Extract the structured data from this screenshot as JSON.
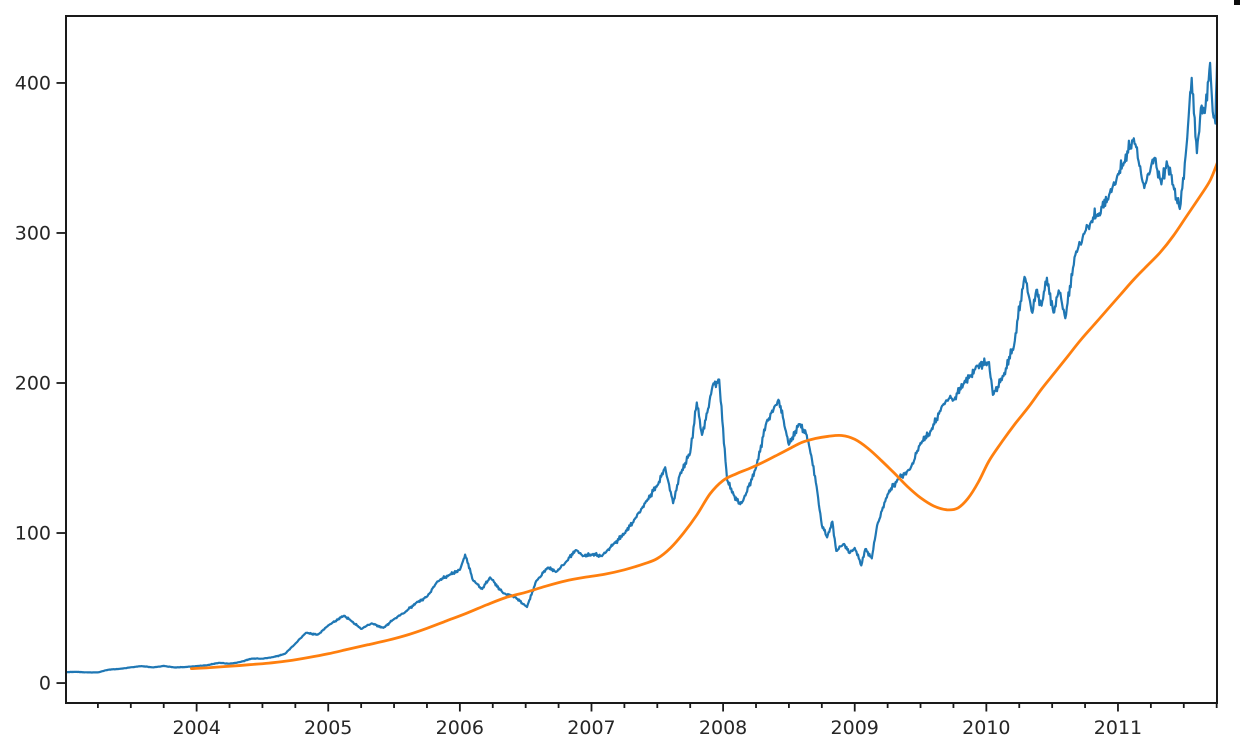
{
  "figure": {
    "background": "#ffffff",
    "axis_color": "#1a1a1a",
    "tick_label_color": "#262626",
    "corner_artifact_color": "#0d0d0d"
  },
  "chart_data": {
    "type": "line",
    "title": "",
    "xlabel": "",
    "ylabel": "",
    "grid": false,
    "legend": "none",
    "frame": "full-box",
    "xlim": [
      2003.0,
      2011.76
    ],
    "ylim": [
      -13.3,
      445.3
    ],
    "x_major_ticks": [
      2004,
      2005,
      2006,
      2007,
      2008,
      2009,
      2010,
      2011
    ],
    "x_tick_labels": [
      "2004",
      "2005",
      "2006",
      "2007",
      "2008",
      "2009",
      "2010",
      "2011"
    ],
    "x_minor_tick_start": 2003.25,
    "x_minor_tick_step": 0.25,
    "x_minor_tick_end": 2011.75,
    "y_major_ticks": [
      0,
      100,
      200,
      300,
      400
    ],
    "y_tick_labels": [
      "0",
      "100",
      "200",
      "300",
      "400"
    ],
    "series": [
      {
        "name": "daily-price-line",
        "color": "#1f77b4",
        "width": 2.2,
        "jitter": 0.022,
        "points": [
          [
            2003.0,
            7.2
          ],
          [
            2003.08,
            7.5
          ],
          [
            2003.17,
            7.1
          ],
          [
            2003.25,
            7.1
          ],
          [
            2003.33,
            8.9
          ],
          [
            2003.42,
            9.5
          ],
          [
            2003.5,
            10.5
          ],
          [
            2003.58,
            11.3
          ],
          [
            2003.67,
            10.4
          ],
          [
            2003.75,
            11.4
          ],
          [
            2003.83,
            10.4
          ],
          [
            2003.92,
            10.7
          ],
          [
            2004.0,
            11.3
          ],
          [
            2004.08,
            11.9
          ],
          [
            2004.17,
            13.5
          ],
          [
            2004.25,
            12.9
          ],
          [
            2004.33,
            14.0
          ],
          [
            2004.42,
            16.3
          ],
          [
            2004.5,
            16.2
          ],
          [
            2004.58,
            17.3
          ],
          [
            2004.67,
            19.4
          ],
          [
            2004.75,
            26.2
          ],
          [
            2004.83,
            33.5
          ],
          [
            2004.92,
            32.2
          ],
          [
            2005.0,
            38.4
          ],
          [
            2005.12,
            44.9
          ],
          [
            2005.17,
            41.7
          ],
          [
            2005.25,
            36.1
          ],
          [
            2005.33,
            39.8
          ],
          [
            2005.42,
            36.8
          ],
          [
            2005.5,
            42.7
          ],
          [
            2005.58,
            46.9
          ],
          [
            2005.67,
            53.6
          ],
          [
            2005.75,
            57.6
          ],
          [
            2005.83,
            67.8
          ],
          [
            2005.92,
            71.9
          ],
          [
            2006.0,
            75.5
          ],
          [
            2006.04,
            85.6
          ],
          [
            2006.1,
            68.5
          ],
          [
            2006.17,
            62.7
          ],
          [
            2006.23,
            70.4
          ],
          [
            2006.33,
            59.8
          ],
          [
            2006.42,
            57.3
          ],
          [
            2006.51,
            50.7
          ],
          [
            2006.58,
            68.0
          ],
          [
            2006.67,
            77.0
          ],
          [
            2006.73,
            74.0
          ],
          [
            2006.81,
            81.1
          ],
          [
            2006.88,
            88.6
          ],
          [
            2006.94,
            84.8
          ],
          [
            2007.0,
            85.7
          ],
          [
            2007.08,
            84.6
          ],
          [
            2007.17,
            92.9
          ],
          [
            2007.25,
            99.8
          ],
          [
            2007.33,
            109.4
          ],
          [
            2007.42,
            121.3
          ],
          [
            2007.5,
            131.8
          ],
          [
            2007.56,
            143.8
          ],
          [
            2007.62,
            119.9
          ],
          [
            2007.67,
            138.5
          ],
          [
            2007.75,
            153.5
          ],
          [
            2007.8,
            187.0
          ],
          [
            2007.84,
            165.4
          ],
          [
            2007.88,
            180.2
          ],
          [
            2007.92,
            198.1
          ],
          [
            2007.97,
            202.3
          ],
          [
            2008.03,
            135.4
          ],
          [
            2008.08,
            125.5
          ],
          [
            2008.13,
            119.2
          ],
          [
            2008.17,
            125.0
          ],
          [
            2008.25,
            143.5
          ],
          [
            2008.33,
            173.9
          ],
          [
            2008.42,
            188.8
          ],
          [
            2008.46,
            175.1
          ],
          [
            2008.5,
            158.9
          ],
          [
            2008.58,
            172.6
          ],
          [
            2008.63,
            166.2
          ],
          [
            2008.67,
            151.7
          ],
          [
            2008.71,
            131.1
          ],
          [
            2008.75,
            105.3
          ],
          [
            2008.79,
            97.1
          ],
          [
            2008.83,
            107.6
          ],
          [
            2008.86,
            88.1
          ],
          [
            2008.92,
            92.7
          ],
          [
            2008.96,
            86.6
          ],
          [
            2009.0,
            90.1
          ],
          [
            2009.05,
            78.4
          ],
          [
            2009.08,
            89.3
          ],
          [
            2009.13,
            83.1
          ],
          [
            2009.17,
            105.1
          ],
          [
            2009.25,
            125.8
          ],
          [
            2009.33,
            135.8
          ],
          [
            2009.42,
            142.4
          ],
          [
            2009.5,
            160.1
          ],
          [
            2009.58,
            168.2
          ],
          [
            2009.67,
            185.3
          ],
          [
            2009.72,
            190.0
          ],
          [
            2009.75,
            188.5
          ],
          [
            2009.83,
            199.9
          ],
          [
            2009.88,
            204.4
          ],
          [
            2009.92,
            210.7
          ],
          [
            2010.02,
            214.0
          ],
          [
            2010.05,
            192.1
          ],
          [
            2010.13,
            204.6
          ],
          [
            2010.21,
            224.8
          ],
          [
            2010.29,
            270.8
          ],
          [
            2010.35,
            246.8
          ],
          [
            2010.38,
            262.1
          ],
          [
            2010.42,
            251.5
          ],
          [
            2010.46,
            270.2
          ],
          [
            2010.51,
            246.9
          ],
          [
            2010.55,
            261.7
          ],
          [
            2010.6,
            243.1
          ],
          [
            2010.67,
            283.8
          ],
          [
            2010.75,
            300.9
          ],
          [
            2010.8,
            308.0
          ],
          [
            2010.84,
            311.2
          ],
          [
            2010.88,
            317.1
          ],
          [
            2010.92,
            322.6
          ],
          [
            2011.0,
            339.3
          ],
          [
            2011.04,
            345.0
          ],
          [
            2011.12,
            363.1
          ],
          [
            2011.2,
            330.0
          ],
          [
            2011.25,
            344.0
          ],
          [
            2011.28,
            350.1
          ],
          [
            2011.33,
            332.4
          ],
          [
            2011.37,
            347.8
          ],
          [
            2011.42,
            332.0
          ],
          [
            2011.47,
            316.0
          ],
          [
            2011.52,
            357.2
          ],
          [
            2011.56,
            403.4
          ],
          [
            2011.6,
            353.2
          ],
          [
            2011.63,
            383.4
          ],
          [
            2011.66,
            379.9
          ],
          [
            2011.7,
            413.4
          ],
          [
            2011.72,
            381.0
          ],
          [
            2011.74,
            373.0
          ],
          [
            2011.755,
            421.0
          ]
        ]
      },
      {
        "name": "moving-average-line",
        "color": "#ff7f0e",
        "width": 2.8,
        "jitter": 0,
        "points": [
          [
            2003.96,
            9.6
          ],
          [
            2004.1,
            10.3
          ],
          [
            2004.25,
            11.2
          ],
          [
            2004.4,
            12.2
          ],
          [
            2004.55,
            13.3
          ],
          [
            2004.7,
            14.8
          ],
          [
            2004.85,
            17.0
          ],
          [
            2005.0,
            19.5
          ],
          [
            2005.15,
            22.5
          ],
          [
            2005.3,
            25.5
          ],
          [
            2005.45,
            28.5
          ],
          [
            2005.6,
            32.0
          ],
          [
            2005.75,
            36.5
          ],
          [
            2005.9,
            41.5
          ],
          [
            2006.05,
            46.5
          ],
          [
            2006.2,
            52.0
          ],
          [
            2006.35,
            57.0
          ],
          [
            2006.5,
            60.5
          ],
          [
            2006.65,
            64.5
          ],
          [
            2006.8,
            68.0
          ],
          [
            2006.95,
            70.5
          ],
          [
            2007.1,
            72.5
          ],
          [
            2007.25,
            75.5
          ],
          [
            2007.4,
            79.5
          ],
          [
            2007.5,
            83.0
          ],
          [
            2007.6,
            90.0
          ],
          [
            2007.7,
            100.0
          ],
          [
            2007.8,
            112.0
          ],
          [
            2007.9,
            126.0
          ],
          [
            2008.0,
            135.0
          ],
          [
            2008.1,
            139.5
          ],
          [
            2008.2,
            143.0
          ],
          [
            2008.3,
            147.0
          ],
          [
            2008.4,
            151.5
          ],
          [
            2008.5,
            156.0
          ],
          [
            2008.6,
            160.5
          ],
          [
            2008.7,
            163.0
          ],
          [
            2008.8,
            164.5
          ],
          [
            2008.9,
            165.0
          ],
          [
            2009.0,
            162.5
          ],
          [
            2009.1,
            156.5
          ],
          [
            2009.2,
            148.5
          ],
          [
            2009.3,
            140.0
          ],
          [
            2009.4,
            131.0
          ],
          [
            2009.5,
            123.5
          ],
          [
            2009.6,
            118.0
          ],
          [
            2009.7,
            115.5
          ],
          [
            2009.78,
            116.5
          ],
          [
            2009.86,
            123.0
          ],
          [
            2009.94,
            134.0
          ],
          [
            2010.02,
            148.0
          ],
          [
            2010.12,
            161.0
          ],
          [
            2010.22,
            173.0
          ],
          [
            2010.32,
            184.0
          ],
          [
            2010.42,
            196.0
          ],
          [
            2010.52,
            207.0
          ],
          [
            2010.62,
            218.0
          ],
          [
            2010.72,
            229.0
          ],
          [
            2010.82,
            239.0
          ],
          [
            2010.92,
            249.0
          ],
          [
            2011.02,
            259.0
          ],
          [
            2011.12,
            269.0
          ],
          [
            2011.22,
            278.0
          ],
          [
            2011.32,
            287.0
          ],
          [
            2011.42,
            298.0
          ],
          [
            2011.52,
            311.0
          ],
          [
            2011.62,
            324.0
          ],
          [
            2011.7,
            335.0
          ],
          [
            2011.76,
            348.0
          ]
        ]
      }
    ]
  }
}
